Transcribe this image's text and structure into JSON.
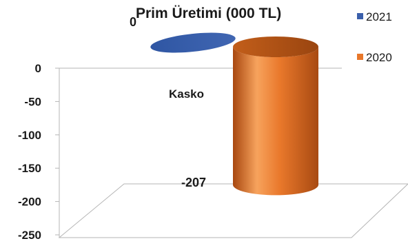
{
  "chart_data": {
    "type": "bar",
    "variant": "3d-cylinder",
    "title": "Prim Üretimi (000 TL)",
    "categories": [
      "Kasko"
    ],
    "series": [
      {
        "name": "2021",
        "values": [
          0
        ],
        "color": "#3a5fab"
      },
      {
        "name": "2020",
        "values": [
          -207
        ],
        "color": "#e8772a"
      }
    ],
    "data_labels": [
      "0",
      "-207"
    ],
    "yticks": [
      "0",
      "-50",
      "-100",
      "-150",
      "-200",
      "-250"
    ],
    "ylim": [
      -250,
      0
    ],
    "legend_position": "right",
    "grid": false
  }
}
